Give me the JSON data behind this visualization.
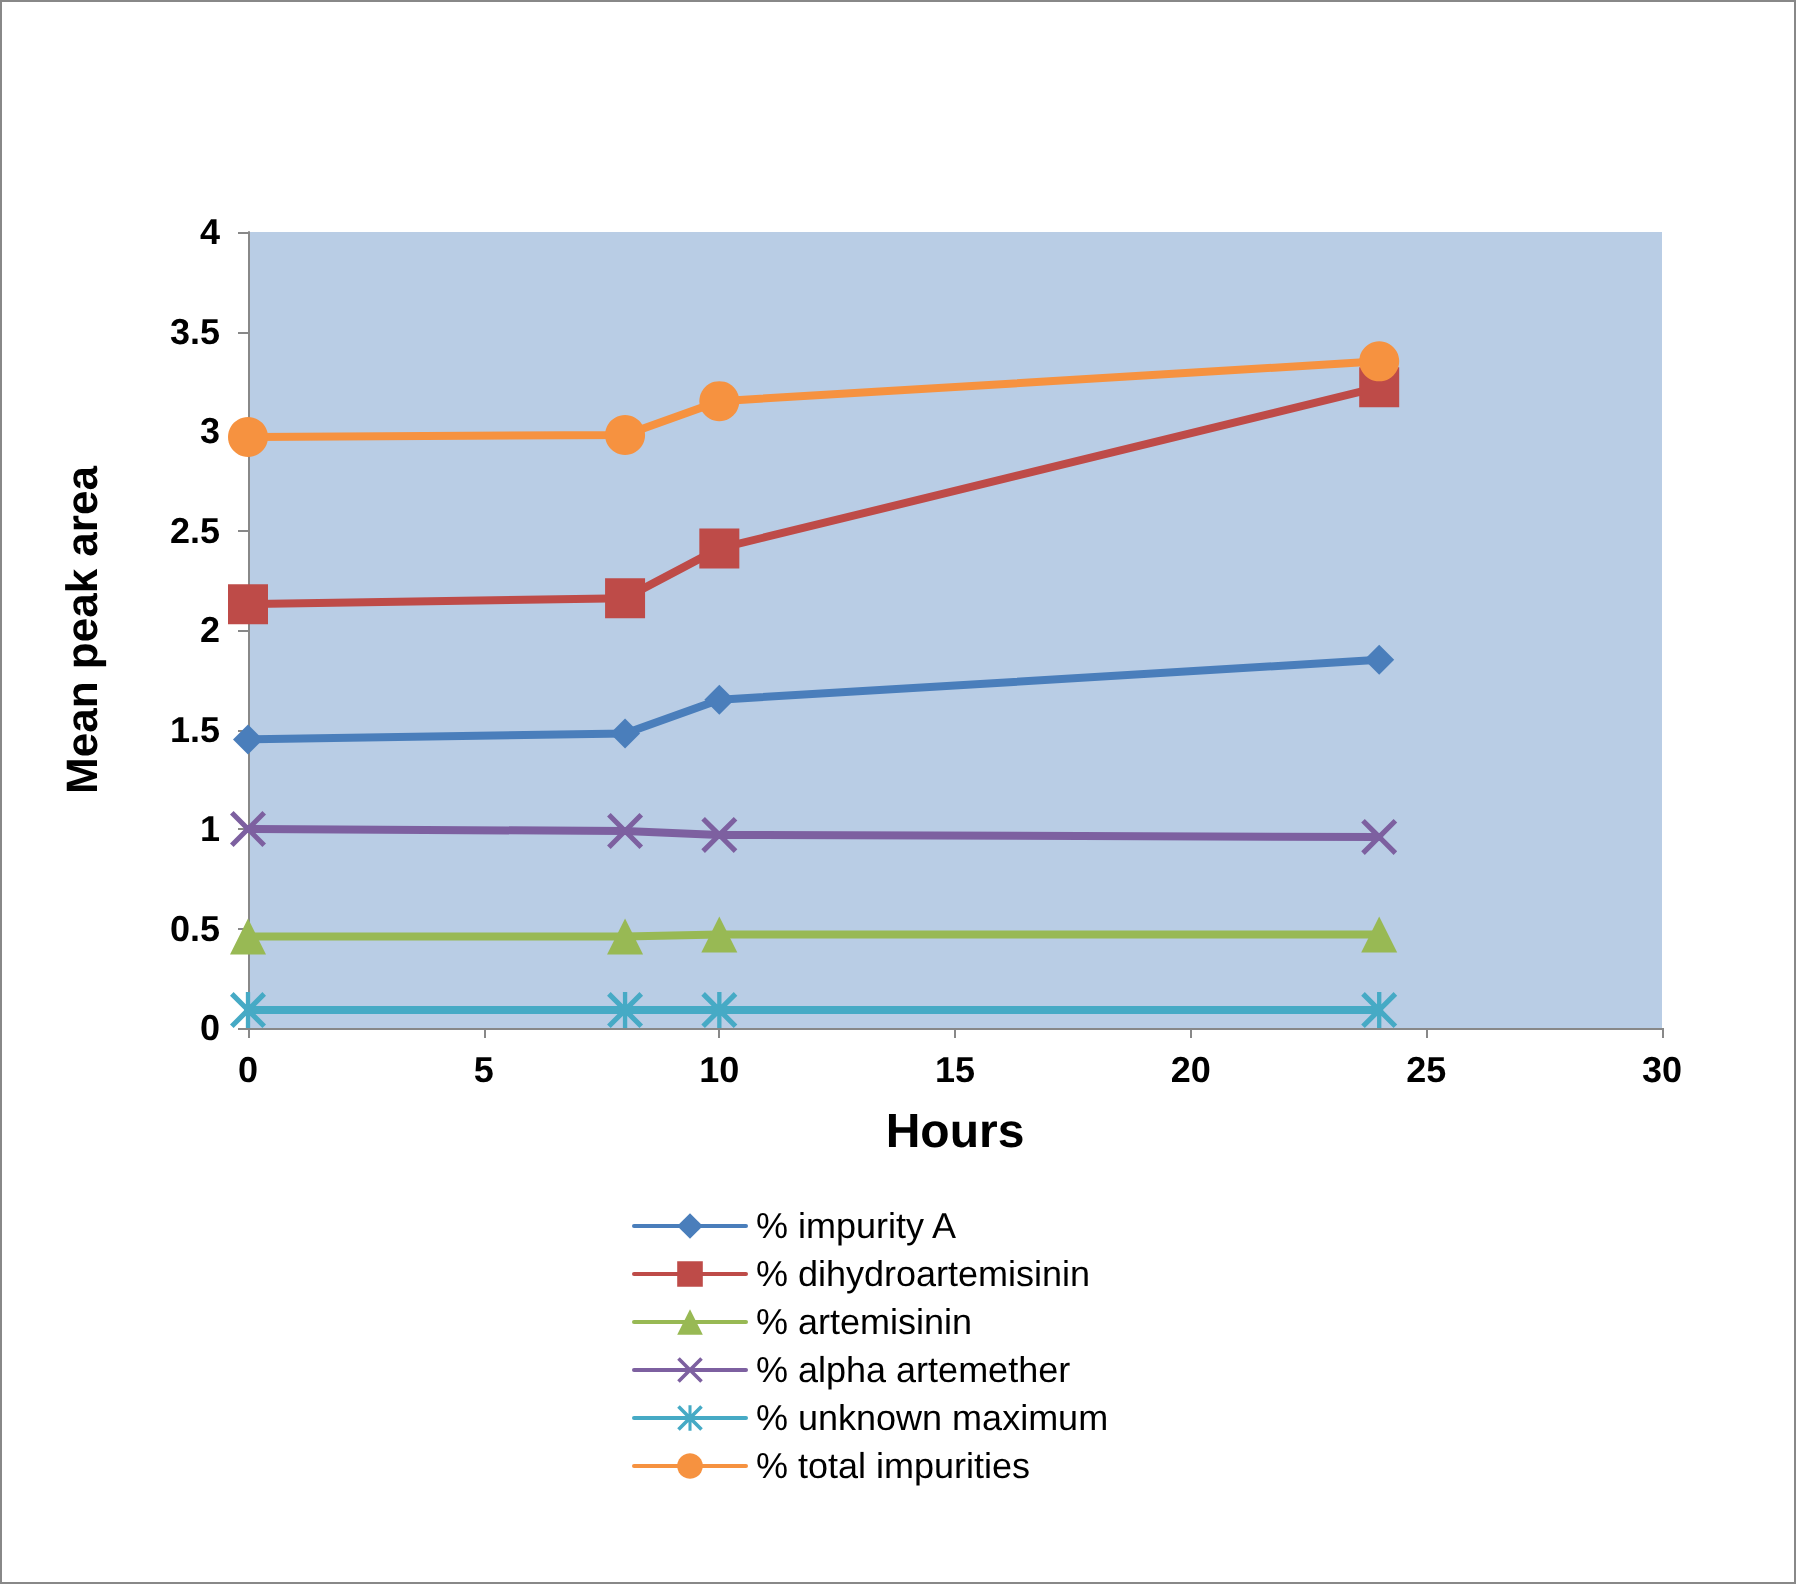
{
  "chart_data": {
    "type": "line",
    "xlabel": "Hours",
    "ylabel": "Mean peak area",
    "x": [
      0,
      8,
      10,
      24
    ],
    "xlim": [
      0,
      30
    ],
    "xticks": [
      0,
      5,
      10,
      15,
      20,
      25,
      30
    ],
    "ylim": [
      0,
      4
    ],
    "yticks": [
      0,
      0.5,
      1,
      1.5,
      2,
      2.5,
      3,
      3.5,
      4
    ],
    "grid": false,
    "legend": "bottom",
    "series": [
      {
        "name": "% impurity A",
        "color": "#4a7ebb",
        "marker": "diamond",
        "values": [
          1.45,
          1.48,
          1.65,
          1.85
        ]
      },
      {
        "name": "% dihydroartemisinin",
        "color": "#be4b48",
        "marker": "square",
        "values": [
          2.13,
          2.16,
          2.41,
          3.22
        ]
      },
      {
        "name": "% artemisinin",
        "color": "#98b954",
        "marker": "triangle",
        "values": [
          0.46,
          0.46,
          0.47,
          0.47
        ]
      },
      {
        "name": "% alpha artemether",
        "color": "#7d60a0",
        "marker": "cross",
        "values": [
          1.0,
          0.99,
          0.97,
          0.96
        ]
      },
      {
        "name": "% unknown maximum",
        "color": "#46aac5",
        "marker": "star",
        "values": [
          0.09,
          0.09,
          0.09,
          0.09
        ]
      },
      {
        "name": "% total impurities",
        "color": "#f69240",
        "marker": "circle",
        "values": [
          2.97,
          2.98,
          3.15,
          3.35
        ]
      }
    ]
  }
}
